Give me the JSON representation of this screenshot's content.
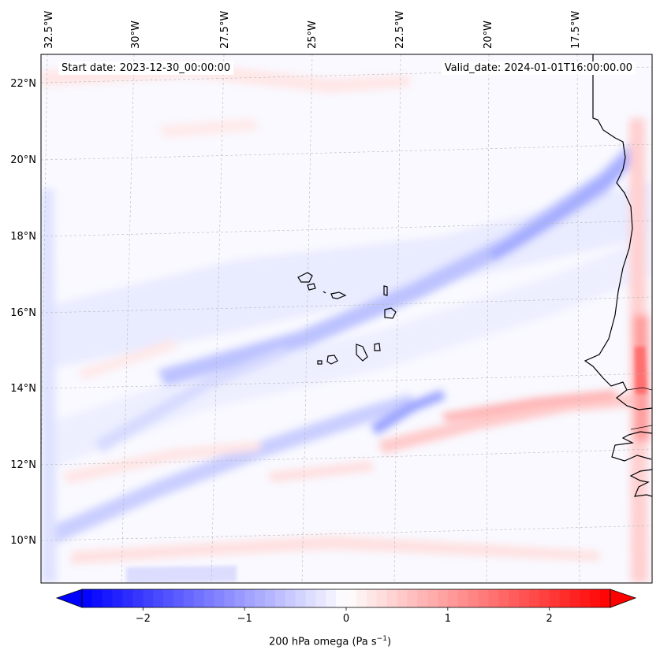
{
  "header": {
    "start_date": "Start date: 2023-12-30_00:00:00",
    "valid_date": "Valid_date: 2024-01-01T16:00:00.00"
  },
  "map": {
    "lon_labels": [
      "32.5°W",
      "30°W",
      "27.5°W",
      "25°W",
      "22.5°W",
      "20°W",
      "17.5°W"
    ],
    "lat_labels": [
      "22°N",
      "20°N",
      "18°N",
      "16°N",
      "14°N",
      "12°N",
      "10°N"
    ],
    "field": "200 hPa omega"
  },
  "colorbar": {
    "label_prefix": "200 hPa omega (Pa s",
    "label_exp": "−1",
    "label_suffix": ")",
    "ticks": [
      "−2",
      "−1",
      "0",
      "1",
      "2"
    ],
    "range": [
      -2.6,
      2.6
    ],
    "colors": {
      "negative": "#0000ff",
      "zero": "#ffffff",
      "positive": "#ff0000"
    }
  },
  "colors": {
    "coastline": "#000000",
    "gridline": "#b0b0b0"
  }
}
